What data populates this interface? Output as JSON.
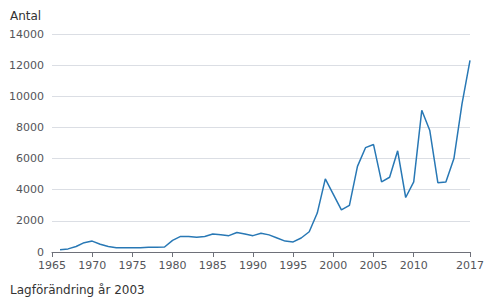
{
  "chart_data": {
    "type": "line",
    "ylabel": "Antal",
    "xlabel": "Lagförändring år 2003",
    "x": [
      1966,
      1967,
      1968,
      1969,
      1970,
      1971,
      1972,
      1973,
      1974,
      1975,
      1976,
      1977,
      1978,
      1979,
      1980,
      1981,
      1982,
      1983,
      1984,
      1985,
      1986,
      1987,
      1988,
      1989,
      1990,
      1991,
      1992,
      1993,
      1994,
      1995,
      1996,
      1997,
      1998,
      1999,
      2000,
      2001,
      2002,
      2003,
      2004,
      2005,
      2006,
      2007,
      2008,
      2009,
      2010,
      2011,
      2012,
      2013,
      2014,
      2015,
      2016,
      2017
    ],
    "values": [
      150,
      200,
      350,
      600,
      700,
      500,
      350,
      280,
      280,
      270,
      280,
      300,
      310,
      320,
      750,
      1000,
      1000,
      950,
      1000,
      1150,
      1100,
      1050,
      1250,
      1150,
      1050,
      1200,
      1100,
      900,
      700,
      650,
      900,
      1300,
      2500,
      4700,
      3700,
      2700,
      3000,
      5500,
      6700,
      6900,
      4500,
      4800,
      6500,
      3500,
      4500,
      9100,
      7800,
      4450,
      4500,
      6000,
      9500,
      12300
    ],
    "color": "#2878b5",
    "xlim": [
      1965,
      2017
    ],
    "ylim": [
      0,
      14000
    ],
    "xticks": [
      1965,
      1970,
      1975,
      1980,
      1985,
      1990,
      1995,
      2000,
      2005,
      2010,
      2017
    ],
    "yticks": [
      0,
      2000,
      4000,
      6000,
      8000,
      10000,
      12000,
      14000
    ],
    "grid": true
  }
}
